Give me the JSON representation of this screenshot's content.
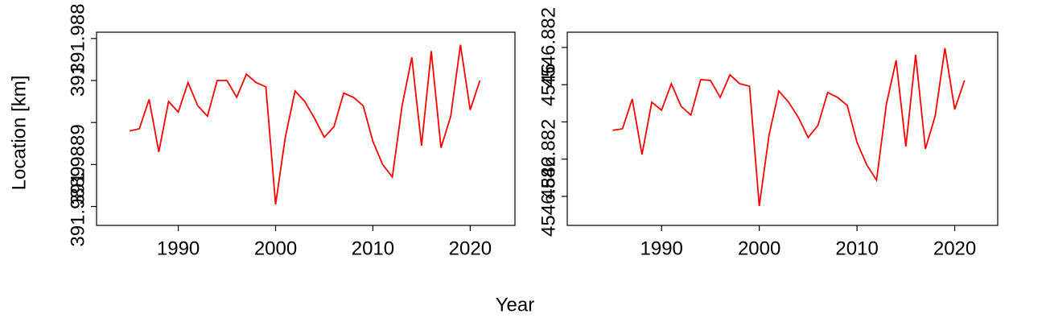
{
  "xlabel": "Year",
  "ylabel": "Location [km]",
  "chart_data": [
    {
      "type": "line",
      "x": [
        1985,
        1986,
        1987,
        1988,
        1989,
        1990,
        1991,
        1992,
        1993,
        1994,
        1995,
        1996,
        1997,
        1998,
        1999,
        2000,
        2001,
        2002,
        2003,
        2004,
        2005,
        2006,
        2007,
        2008,
        2009,
        2010,
        2011,
        2012,
        2013,
        2014,
        2015,
        2016,
        2017,
        2018,
        2019,
        2020,
        2021
      ],
      "series": [
        {
          "color": "#ff0000",
          "values": [
            391.988896,
            391.988897,
            391.988911,
            391.988886,
            391.98891,
            391.988905,
            391.988919,
            391.988908,
            391.988903,
            391.98892,
            391.98892,
            391.988912,
            391.988923,
            391.988919,
            391.988917,
            391.988861,
            391.988893,
            391.988915,
            391.98891,
            391.988902,
            391.988893,
            391.988898,
            391.988914,
            391.988912,
            391.988908,
            391.988891,
            391.98888,
            391.988874,
            391.988908,
            391.988931,
            391.988889,
            391.988934,
            391.988888,
            391.988903,
            391.988937,
            391.988906,
            391.98892
          ]
        }
      ],
      "xlim": [
        1981.6,
        2024.6
      ],
      "xticks": [
        1990,
        2000,
        2010,
        2020
      ],
      "ylim": [
        391.988851,
        391.988943
      ],
      "yticks": [
        {
          "value": 391.98886,
          "label": "391.9889"
        },
        {
          "value": 391.98888,
          "label": "391.9889"
        },
        {
          "value": 391.9889,
          "label": null
        },
        {
          "value": 391.98892,
          "label": "391"
        },
        {
          "value": 391.98894,
          "label": "391.988"
        }
      ]
    },
    {
      "type": "line",
      "x": [
        1985,
        1986,
        1987,
        1988,
        1989,
        1990,
        1991,
        1992,
        1993,
        1994,
        1995,
        1996,
        1997,
        1998,
        1999,
        2000,
        2001,
        2002,
        2003,
        2004,
        2005,
        2006,
        2007,
        2008,
        2009,
        2010,
        2011,
        2012,
        2013,
        2014,
        2015,
        2016,
        2017,
        2018,
        2019,
        2020,
        2021
      ],
      "series": [
        {
          "color": "#ff0000",
          "values": [
            4546.881955,
            4546.881963,
            4546.882123,
            4546.881825,
            4546.882106,
            4546.882063,
            4546.882205,
            4546.882084,
            4546.882037,
            4546.882227,
            4546.882223,
            4546.882132,
            4546.882253,
            4546.882205,
            4546.882192,
            4546.881548,
            4546.881929,
            4546.882166,
            4546.882106,
            4546.882024,
            4546.881916,
            4546.881981,
            4546.882158,
            4546.882132,
            4546.882089,
            4546.88189,
            4546.881769,
            4546.881687,
            4546.882093,
            4546.882331,
            4546.881868,
            4546.882361,
            4546.881855,
            4546.882032,
            4546.882396,
            4546.882067,
            4546.882223
          ]
        }
      ],
      "xlim": [
        1980.35,
        2024.4
      ],
      "xticks": [
        1990,
        2000,
        2010,
        2020
      ],
      "ylim": [
        4546.881444,
        4546.882482
      ],
      "yticks": [
        {
          "value": 4546.8816,
          "label": "4546.882"
        },
        {
          "value": 4546.8818,
          "label": "4546.882"
        },
        {
          "value": 4546.882,
          "label": null
        },
        {
          "value": 4546.8822,
          "label": "4546"
        },
        {
          "value": 4546.8824,
          "label": "4546.882"
        }
      ]
    }
  ]
}
